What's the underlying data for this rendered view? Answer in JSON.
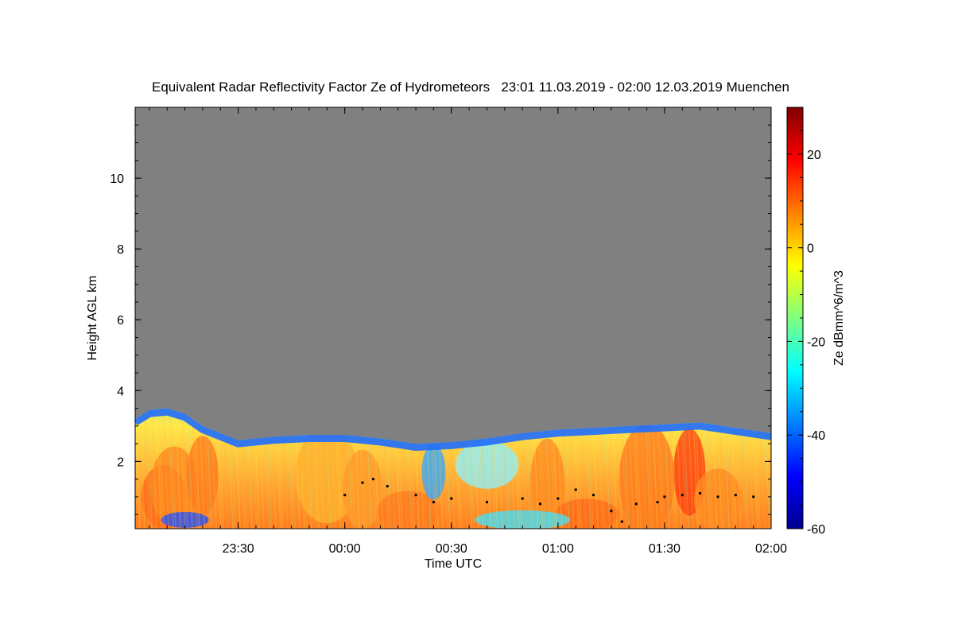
{
  "chart_data": {
    "type": "heatmap",
    "title": "Equivalent Radar Reflectivity Factor Ze of Hydrometeors   23:01 11.03.2019 - 02:00 12.03.2019 Muenchen",
    "xlabel": "Time UTC",
    "ylabel": "Height AGL km",
    "x_range": [
      "23:01",
      "02:00"
    ],
    "x_ticks": [
      "23:30",
      "00:00",
      "00:30",
      "01:00",
      "01:30",
      "02:00"
    ],
    "y_range": [
      0.1,
      12.0
    ],
    "y_ticks": [
      "2",
      "4",
      "6",
      "8",
      "10"
    ],
    "colorbar": {
      "label": "Ze dBmm^6/m^3",
      "range": [
        -60,
        30
      ],
      "ticks": [
        "20",
        "0",
        "-20",
        "-40",
        "-60"
      ],
      "colormap": "jet"
    },
    "no_data_color": "#808080",
    "echo_top_km": [
      {
        "t": "23:01",
        "h": 3.2
      },
      {
        "t": "23:05",
        "h": 3.45
      },
      {
        "t": "23:10",
        "h": 3.5
      },
      {
        "t": "23:15",
        "h": 3.35
      },
      {
        "t": "23:20",
        "h": 3.0
      },
      {
        "t": "23:25",
        "h": 2.8
      },
      {
        "t": "23:30",
        "h": 2.6
      },
      {
        "t": "23:40",
        "h": 2.7
      },
      {
        "t": "23:50",
        "h": 2.75
      },
      {
        "t": "00:00",
        "h": 2.75
      },
      {
        "t": "00:10",
        "h": 2.65
      },
      {
        "t": "00:20",
        "h": 2.5
      },
      {
        "t": "00:30",
        "h": 2.55
      },
      {
        "t": "00:40",
        "h": 2.65
      },
      {
        "t": "00:50",
        "h": 2.8
      },
      {
        "t": "01:00",
        "h": 2.9
      },
      {
        "t": "01:10",
        "h": 2.95
      },
      {
        "t": "01:20",
        "h": 3.0
      },
      {
        "t": "01:30",
        "h": 3.05
      },
      {
        "t": "01:40",
        "h": 3.1
      },
      {
        "t": "01:50",
        "h": 2.95
      },
      {
        "t": "02:00",
        "h": 2.8
      }
    ],
    "cloud_base_km": [
      {
        "t": "00:00",
        "h": 1.05
      },
      {
        "t": "00:05",
        "h": 1.4
      },
      {
        "t": "00:08",
        "h": 1.5
      },
      {
        "t": "00:12",
        "h": 1.3
      },
      {
        "t": "00:20",
        "h": 1.05
      },
      {
        "t": "00:25",
        "h": 0.85
      },
      {
        "t": "00:30",
        "h": 0.95
      },
      {
        "t": "00:40",
        "h": 0.85
      },
      {
        "t": "00:50",
        "h": 0.95
      },
      {
        "t": "00:55",
        "h": 0.8
      },
      {
        "t": "01:00",
        "h": 0.95
      },
      {
        "t": "01:05",
        "h": 1.2
      },
      {
        "t": "01:10",
        "h": 1.05
      },
      {
        "t": "01:15",
        "h": 0.6
      },
      {
        "t": "01:18",
        "h": 0.3
      },
      {
        "t": "01:22",
        "h": 0.8
      },
      {
        "t": "01:28",
        "h": 0.85
      },
      {
        "t": "01:30",
        "h": 1.0
      },
      {
        "t": "01:35",
        "h": 1.05
      },
      {
        "t": "01:40",
        "h": 1.1
      },
      {
        "t": "01:45",
        "h": 1.0
      },
      {
        "t": "01:50",
        "h": 1.05
      },
      {
        "t": "01:55",
        "h": 1.0
      }
    ]
  }
}
